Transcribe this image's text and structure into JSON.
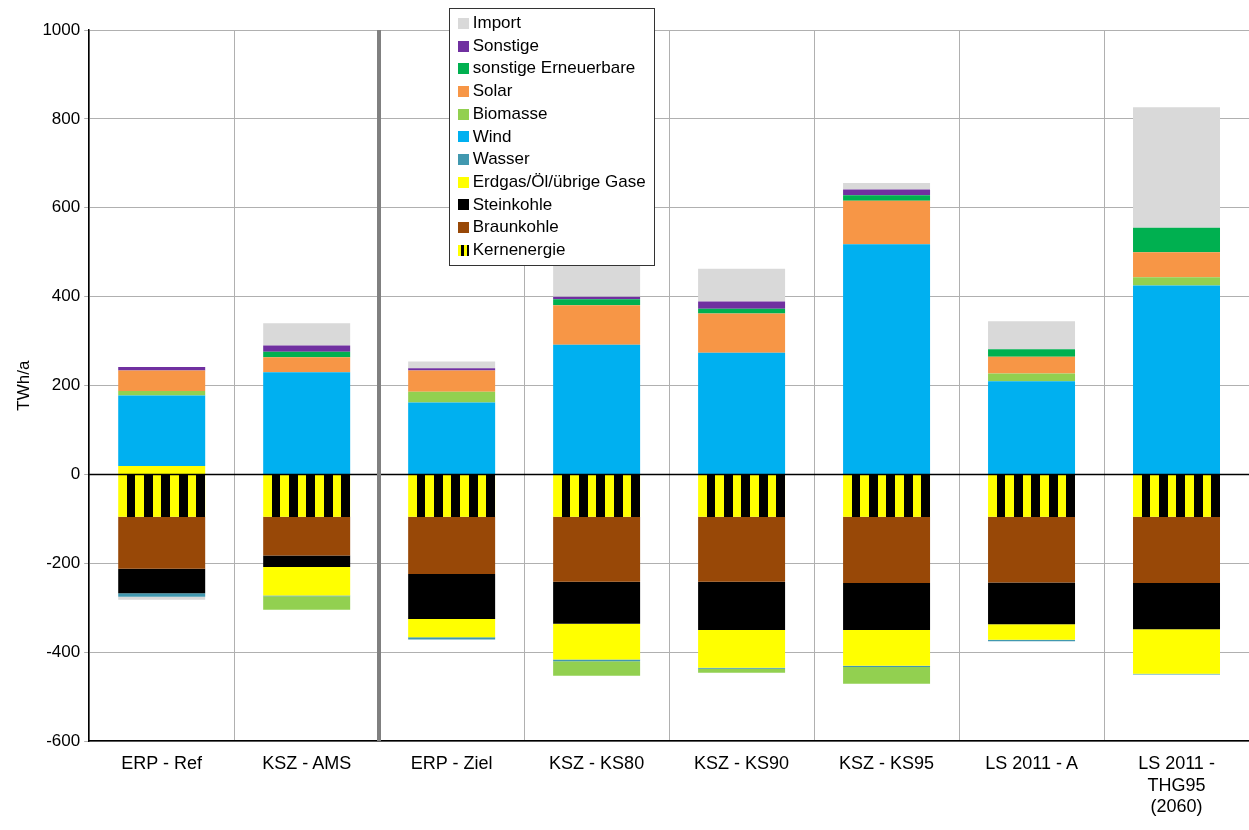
{
  "chart_data": {
    "type": "bar",
    "stacked": true,
    "ylabel": "TWh/a",
    "categories": [
      "ERP - Ref",
      "KSZ - AMS",
      "ERP - Ziel",
      "KSZ - KS80",
      "KSZ - KS90",
      "KSZ - KS95",
      "LS 2011 - A",
      "LS 2011 - THG95 (2060)"
    ],
    "series": [
      {
        "name": "Kernenergie",
        "color": "#ffff00",
        "values": [
          -95,
          -95,
          -95,
          -95,
          -95,
          -95,
          -95,
          -95
        ]
      },
      {
        "name": "Braunkohle",
        "color": "#984807",
        "values": [
          -117,
          -87,
          -129,
          -146,
          -146,
          -149,
          -148,
          -149
        ]
      },
      {
        "name": "Steinkohle",
        "color": "#000000",
        "values": [
          -55,
          -26,
          -101,
          -95,
          -109,
          -106,
          -94,
          -104
        ]
      },
      {
        "name": "Erdgas/Öl/übrige Gase",
        "color": "#ffff00",
        "values": [
          19,
          -64,
          -41,
          -80,
          -85,
          -80,
          -35,
          -100
        ]
      },
      {
        "name": "Wasser",
        "color": "#4198af",
        "values": [
          -8,
          -2,
          -5,
          -4,
          -2,
          -3,
          -3,
          -2
        ]
      },
      {
        "name": "Wind",
        "color": "#00b0f0",
        "values": [
          159,
          230,
          162,
          292,
          274,
          518,
          210,
          425
        ]
      },
      {
        "name": "Biomasse",
        "color": "#92d050",
        "values": [
          10,
          -30,
          24,
          -33,
          -9,
          -38,
          17,
          19
        ]
      },
      {
        "name": "Solar",
        "color": "#f79646",
        "values": [
          46,
          34,
          48,
          89,
          88,
          98,
          38,
          56
        ]
      },
      {
        "name": "sonstige Erneuerbare",
        "color": "#00b050",
        "values": [
          null,
          12,
          null,
          13,
          11,
          12,
          17,
          55
        ]
      },
      {
        "name": "Sonstige",
        "color": "#7030a0",
        "values": [
          8,
          14,
          5,
          6,
          16,
          13,
          null,
          null
        ]
      },
      {
        "name": "Import",
        "color": "#d9d9d9",
        "values": [
          -7,
          50,
          15,
          69,
          74,
          15,
          63,
          271
        ]
      }
    ],
    "ylim": [
      -600,
      1000
    ],
    "yticks": [
      -600,
      -400,
      -200,
      0,
      200,
      400,
      600,
      800,
      1000
    ],
    "grid": true,
    "legend": "top"
  }
}
